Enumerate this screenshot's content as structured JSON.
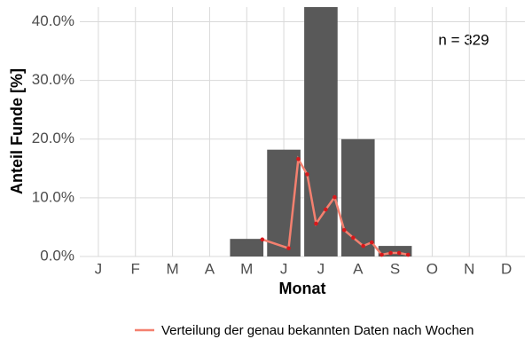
{
  "chart_data": {
    "type": "bar",
    "x_label": "Monat",
    "y_label": "Anteil Funde [%]",
    "annotation": "n = 329",
    "categories": [
      "J",
      "F",
      "M",
      "A",
      "M",
      "J",
      "J",
      "A",
      "S",
      "O",
      "N",
      "D"
    ],
    "values": [
      0,
      0,
      0,
      0,
      3.0,
      18.2,
      42.5,
      20.0,
      1.8,
      0,
      0,
      0
    ],
    "color": "#595959",
    "line": {
      "name": "Verteilung der genau bekannten Daten nach Wochen",
      "color": "#f4806f",
      "point_color": "#d7191c",
      "x": [
        5.42,
        6.13,
        6.39,
        6.63,
        6.87,
        7.13,
        7.37,
        7.63,
        7.87,
        8.14,
        8.37,
        8.64,
        8.88,
        9.11,
        9.35
      ],
      "values": [
        2.9,
        1.4,
        16.6,
        14.0,
        5.6,
        8.0,
        10.1,
        4.5,
        3.2,
        1.8,
        2.4,
        0.3,
        0.6,
        0.6,
        0.3
      ]
    },
    "ylim": [
      0,
      42.5
    ],
    "yticks": [
      {
        "value": 0,
        "label": "0.0%"
      },
      {
        "value": 10,
        "label": "10.0%"
      },
      {
        "value": 20,
        "label": "20.0%"
      },
      {
        "value": 30,
        "label": "30.0%"
      },
      {
        "value": 40,
        "label": "40.0%"
      }
    ],
    "grid": true,
    "legend_position": "bottom"
  }
}
